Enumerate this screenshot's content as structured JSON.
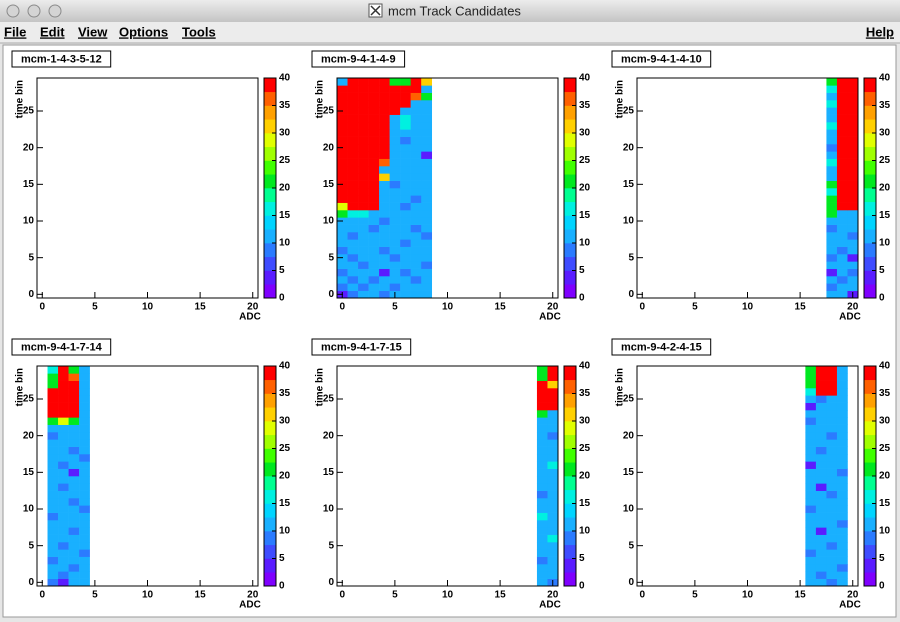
{
  "window": {
    "title": "mcm Track Candidates"
  },
  "menu": [
    "File",
    "Edit",
    "View",
    "Options",
    "Tools"
  ],
  "help": "Help",
  "chart_data": [
    {
      "type": "heatmap",
      "title": "mcm-1-4-3-5-12",
      "xlabel": "ADC",
      "ylabel": "time bin",
      "xlim": [
        -0.5,
        20.5
      ],
      "ylim": [
        -0.5,
        29.5
      ],
      "xticks": [
        0,
        5,
        10,
        15,
        20
      ],
      "yticks": [
        0,
        5,
        10,
        15,
        20,
        25
      ],
      "zlim": [
        0,
        40
      ],
      "zticks": [
        0,
        5,
        10,
        15,
        20,
        25,
        30,
        35,
        40
      ]
    },
    {
      "type": "heatmap",
      "title": "mcm-9-4-1-4-9",
      "xlabel": "ADC",
      "ylabel": "time bin",
      "xlim": [
        -0.5,
        20.5
      ],
      "ylim": [
        -0.5,
        29.5
      ],
      "xticks": [
        0,
        5,
        10,
        15,
        20
      ],
      "yticks": [
        0,
        5,
        10,
        15,
        20,
        25
      ],
      "zlim": [
        0,
        40
      ],
      "zticks": [
        0,
        5,
        10,
        15,
        20,
        25,
        30,
        35,
        40
      ],
      "x": [
        0,
        1,
        2,
        3,
        4,
        5,
        6,
        7,
        8
      ],
      "y": [
        0,
        1,
        2,
        3,
        4,
        5,
        6,
        7,
        8,
        9,
        10,
        11,
        12,
        13,
        14,
        15,
        16,
        17,
        18,
        19,
        20,
        21,
        22,
        23,
        24,
        25,
        26,
        27,
        28,
        29
      ],
      "z": [
        [
          4,
          8,
          12,
          12,
          8,
          12,
          12,
          12,
          12
        ],
        [
          8,
          12,
          8,
          12,
          12,
          8,
          12,
          12,
          12
        ],
        [
          12,
          8,
          12,
          8,
          12,
          12,
          12,
          8,
          12
        ],
        [
          8,
          12,
          12,
          12,
          4,
          12,
          8,
          12,
          12
        ],
        [
          12,
          12,
          8,
          12,
          12,
          12,
          12,
          12,
          8
        ],
        [
          12,
          8,
          12,
          12,
          12,
          8,
          12,
          12,
          12
        ],
        [
          8,
          12,
          12,
          12,
          8,
          12,
          12,
          12,
          12
        ],
        [
          12,
          12,
          12,
          12,
          12,
          12,
          8,
          12,
          12
        ],
        [
          12,
          8,
          12,
          12,
          12,
          12,
          12,
          12,
          8
        ],
        [
          12,
          12,
          12,
          8,
          12,
          12,
          12,
          8,
          12
        ],
        [
          12,
          12,
          12,
          12,
          8,
          12,
          12,
          12,
          12
        ],
        [
          20,
          16,
          16,
          12,
          12,
          12,
          12,
          12,
          12
        ],
        [
          28,
          40,
          40,
          40,
          12,
          12,
          8,
          12,
          12
        ],
        [
          40,
          40,
          40,
          40,
          12,
          12,
          12,
          8,
          12
        ],
        [
          40,
          40,
          40,
          40,
          12,
          12,
          12,
          12,
          12
        ],
        [
          40,
          40,
          40,
          40,
          12,
          8,
          12,
          12,
          12
        ],
        [
          40,
          40,
          40,
          40,
          30,
          12,
          12,
          12,
          12
        ],
        [
          40,
          40,
          40,
          40,
          12,
          12,
          12,
          12,
          12
        ],
        [
          40,
          40,
          40,
          40,
          35,
          12,
          12,
          12,
          12
        ],
        [
          40,
          40,
          40,
          40,
          40,
          12,
          12,
          12,
          4
        ],
        [
          40,
          40,
          40,
          40,
          40,
          12,
          12,
          12,
          12
        ],
        [
          40,
          40,
          40,
          40,
          40,
          12,
          8,
          12,
          12
        ],
        [
          40,
          40,
          40,
          40,
          40,
          12,
          12,
          12,
          12
        ],
        [
          40,
          40,
          40,
          40,
          40,
          12,
          16,
          12,
          12
        ],
        [
          40,
          40,
          40,
          40,
          40,
          12,
          16,
          12,
          12
        ],
        [
          40,
          40,
          40,
          40,
          40,
          40,
          12,
          12,
          12
        ],
        [
          40,
          40,
          40,
          40,
          40,
          40,
          40,
          12,
          12
        ],
        [
          40,
          40,
          40,
          40,
          40,
          40,
          40,
          35,
          20
        ],
        [
          40,
          40,
          40,
          40,
          40,
          40,
          40,
          40,
          12
        ],
        [
          12,
          40,
          40,
          40,
          40,
          20,
          20,
          40,
          30
        ]
      ]
    },
    {
      "type": "heatmap",
      "title": "mcm-9-4-1-4-10",
      "xlabel": "ADC",
      "ylabel": "time bin",
      "xlim": [
        -0.5,
        20.5
      ],
      "ylim": [
        -0.5,
        29.5
      ],
      "xticks": [
        0,
        5,
        10,
        15,
        20
      ],
      "yticks": [
        0,
        5,
        10,
        15,
        20,
        25
      ],
      "zlim": [
        0,
        40
      ],
      "zticks": [
        0,
        5,
        10,
        15,
        20,
        25,
        30,
        35,
        40
      ],
      "x": [
        18,
        19,
        20
      ],
      "y": [
        0,
        1,
        2,
        3,
        4,
        5,
        6,
        7,
        8,
        9,
        10,
        11,
        12,
        13,
        14,
        15,
        16,
        17,
        18,
        19,
        20,
        21,
        22,
        23,
        24,
        25,
        26,
        27,
        28,
        29
      ],
      "z": [
        [
          12,
          12,
          4
        ],
        [
          8,
          12,
          12
        ],
        [
          12,
          8,
          12
        ],
        [
          4,
          12,
          8
        ],
        [
          12,
          12,
          12
        ],
        [
          8,
          12,
          4
        ],
        [
          12,
          8,
          12
        ],
        [
          12,
          12,
          12
        ],
        [
          12,
          12,
          8
        ],
        [
          8,
          12,
          12
        ],
        [
          12,
          12,
          12
        ],
        [
          20,
          12,
          12
        ],
        [
          20,
          40,
          40
        ],
        [
          20,
          40,
          40
        ],
        [
          16,
          40,
          40
        ],
        [
          20,
          40,
          40
        ],
        [
          12,
          40,
          40
        ],
        [
          12,
          40,
          40
        ],
        [
          16,
          40,
          40
        ],
        [
          12,
          40,
          40
        ],
        [
          8,
          40,
          40
        ],
        [
          12,
          40,
          40
        ],
        [
          12,
          40,
          40
        ],
        [
          16,
          40,
          40
        ],
        [
          12,
          40,
          40
        ],
        [
          12,
          40,
          40
        ],
        [
          16,
          40,
          40
        ],
        [
          12,
          40,
          40
        ],
        [
          16,
          40,
          40
        ],
        [
          20,
          40,
          40
        ]
      ]
    },
    {
      "type": "heatmap",
      "title": "mcm-9-4-1-7-14",
      "xlabel": "ADC",
      "ylabel": "time bin",
      "xlim": [
        -0.5,
        20.5
      ],
      "ylim": [
        -0.5,
        29.5
      ],
      "xticks": [
        0,
        5,
        10,
        15,
        20
      ],
      "yticks": [
        0,
        5,
        10,
        15,
        20,
        25
      ],
      "zlim": [
        0,
        40
      ],
      "zticks": [
        0,
        5,
        10,
        15,
        20,
        25,
        30,
        35,
        40
      ],
      "x": [
        1,
        2,
        3,
        4
      ],
      "y": [
        0,
        1,
        2,
        3,
        4,
        5,
        6,
        7,
        8,
        9,
        10,
        11,
        12,
        13,
        14,
        15,
        16,
        17,
        18,
        19,
        20,
        21,
        22,
        23,
        24,
        25,
        26,
        27,
        28,
        29
      ],
      "z": [
        [
          8,
          4,
          12,
          12
        ],
        [
          12,
          8,
          12,
          12
        ],
        [
          12,
          12,
          8,
          12
        ],
        [
          8,
          12,
          12,
          12
        ],
        [
          12,
          12,
          12,
          8
        ],
        [
          12,
          8,
          12,
          12
        ],
        [
          12,
          12,
          12,
          12
        ],
        [
          12,
          12,
          8,
          12
        ],
        [
          12,
          12,
          12,
          12
        ],
        [
          8,
          12,
          12,
          12
        ],
        [
          12,
          12,
          12,
          8
        ],
        [
          12,
          12,
          8,
          12
        ],
        [
          12,
          12,
          12,
          12
        ],
        [
          12,
          8,
          12,
          12
        ],
        [
          12,
          12,
          12,
          12
        ],
        [
          12,
          12,
          4,
          12
        ],
        [
          12,
          8,
          12,
          12
        ],
        [
          12,
          12,
          12,
          8
        ],
        [
          12,
          12,
          8,
          12
        ],
        [
          12,
          12,
          12,
          12
        ],
        [
          8,
          12,
          12,
          12
        ],
        [
          12,
          12,
          12,
          12
        ],
        [
          20,
          28,
          20,
          12
        ],
        [
          40,
          40,
          40,
          12
        ],
        [
          40,
          40,
          40,
          12
        ],
        [
          40,
          40,
          40,
          12
        ],
        [
          40,
          40,
          40,
          12
        ],
        [
          20,
          40,
          40,
          12
        ],
        [
          20,
          40,
          35,
          12
        ],
        [
          16,
          40,
          20,
          12
        ]
      ]
    },
    {
      "type": "heatmap",
      "title": "mcm-9-4-1-7-15",
      "xlabel": "ADC",
      "ylabel": "time bin",
      "xlim": [
        -0.5,
        20.5
      ],
      "ylim": [
        -0.5,
        29.5
      ],
      "xticks": [
        0,
        5,
        10,
        15,
        20
      ],
      "yticks": [
        0,
        5,
        10,
        15,
        20,
        25
      ],
      "zlim": [
        0,
        40
      ],
      "zticks": [
        0,
        5,
        10,
        15,
        20,
        25,
        30,
        35,
        40
      ],
      "x": [
        19,
        20
      ],
      "y": [
        0,
        1,
        2,
        3,
        4,
        5,
        6,
        7,
        8,
        9,
        10,
        11,
        12,
        13,
        14,
        15,
        16,
        17,
        18,
        19,
        20,
        21,
        22,
        23,
        24,
        25,
        26,
        27,
        28,
        29
      ],
      "z": [
        [
          12,
          8
        ],
        [
          12,
          12
        ],
        [
          12,
          12
        ],
        [
          8,
          12
        ],
        [
          12,
          12
        ],
        [
          12,
          12
        ],
        [
          12,
          16
        ],
        [
          12,
          12
        ],
        [
          12,
          12
        ],
        [
          16,
          12
        ],
        [
          12,
          12
        ],
        [
          12,
          12
        ],
        [
          8,
          12
        ],
        [
          12,
          12
        ],
        [
          12,
          12
        ],
        [
          12,
          12
        ],
        [
          12,
          16
        ],
        [
          12,
          12
        ],
        [
          12,
          12
        ],
        [
          12,
          12
        ],
        [
          12,
          8
        ],
        [
          12,
          12
        ],
        [
          12,
          12
        ],
        [
          20,
          12
        ],
        [
          40,
          40
        ],
        [
          40,
          40
        ],
        [
          40,
          40
        ],
        [
          40,
          30
        ],
        [
          20,
          40
        ],
        [
          20,
          40
        ]
      ]
    },
    {
      "type": "heatmap",
      "title": "mcm-9-4-2-4-15",
      "xlabel": "ADC",
      "ylabel": "time bin",
      "xlim": [
        -0.5,
        20.5
      ],
      "ylim": [
        -0.5,
        29.5
      ],
      "xticks": [
        0,
        5,
        10,
        15,
        20
      ],
      "yticks": [
        0,
        5,
        10,
        15,
        20,
        25
      ],
      "zlim": [
        0,
        40
      ],
      "zticks": [
        0,
        5,
        10,
        15,
        20,
        25,
        30,
        35,
        40
      ],
      "x": [
        16,
        17,
        18,
        19
      ],
      "y": [
        0,
        1,
        2,
        3,
        4,
        5,
        6,
        7,
        8,
        9,
        10,
        11,
        12,
        13,
        14,
        15,
        16,
        17,
        18,
        19,
        20,
        21,
        22,
        23,
        24,
        25,
        26,
        27,
        28,
        29
      ],
      "z": [
        [
          12,
          12,
          8,
          12
        ],
        [
          12,
          8,
          12,
          12
        ],
        [
          12,
          12,
          12,
          8
        ],
        [
          12,
          12,
          12,
          12
        ],
        [
          8,
          12,
          12,
          12
        ],
        [
          12,
          12,
          8,
          12
        ],
        [
          12,
          12,
          12,
          12
        ],
        [
          12,
          4,
          12,
          12
        ],
        [
          12,
          12,
          12,
          8
        ],
        [
          12,
          12,
          12,
          12
        ],
        [
          8,
          12,
          12,
          12
        ],
        [
          12,
          12,
          12,
          12
        ],
        [
          12,
          12,
          8,
          12
        ],
        [
          12,
          4,
          12,
          12
        ],
        [
          12,
          12,
          12,
          12
        ],
        [
          12,
          12,
          12,
          8
        ],
        [
          4,
          12,
          12,
          12
        ],
        [
          12,
          12,
          12,
          12
        ],
        [
          12,
          8,
          12,
          12
        ],
        [
          12,
          12,
          12,
          12
        ],
        [
          12,
          12,
          8,
          12
        ],
        [
          12,
          12,
          12,
          12
        ],
        [
          8,
          12,
          12,
          12
        ],
        [
          12,
          12,
          12,
          12
        ],
        [
          4,
          12,
          12,
          12
        ],
        [
          12,
          8,
          12,
          12
        ],
        [
          16,
          40,
          40,
          12
        ],
        [
          20,
          40,
          40,
          12
        ],
        [
          20,
          40,
          40,
          12
        ],
        [
          20,
          40,
          40,
          12
        ]
      ]
    }
  ]
}
